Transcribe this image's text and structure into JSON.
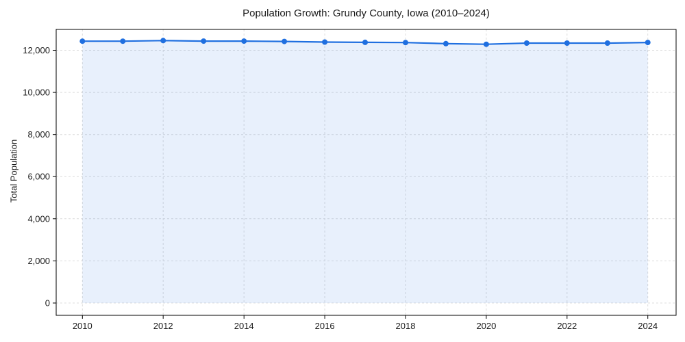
{
  "chart_data": {
    "type": "line",
    "title": "Population Growth: Grundy County, Iowa (2010–2024)",
    "xlabel": "",
    "ylabel": "Total Population",
    "x": [
      2010,
      2011,
      2012,
      2013,
      2014,
      2015,
      2016,
      2017,
      2018,
      2019,
      2020,
      2021,
      2022,
      2023,
      2024
    ],
    "series": [
      {
        "name": "Total Population",
        "values": [
          12430,
          12430,
          12460,
          12435,
          12435,
          12420,
          12390,
          12375,
          12365,
          12315,
          12285,
          12340,
          12340,
          12340,
          12370
        ]
      }
    ],
    "x_ticks": [
      2010,
      2012,
      2014,
      2016,
      2018,
      2020,
      2022,
      2024
    ],
    "x_tick_labels": [
      "2010",
      "2012",
      "2014",
      "2016",
      "2018",
      "2020",
      "2022",
      "2024"
    ],
    "y_ticks": [
      0,
      2000,
      4000,
      6000,
      8000,
      10000,
      12000
    ],
    "y_tick_labels": [
      "0",
      "2,000",
      "4,000",
      "6,000",
      "8,000",
      "10,000",
      "12,000"
    ],
    "xlim": [
      2009.35,
      2024.7
    ],
    "ylim": [
      -585,
      12990
    ],
    "grid": true,
    "grid_style": "dashed",
    "legend": false,
    "area_fill": true,
    "marker": "circle",
    "colors": {
      "line": "#1f6fe0",
      "area_fill": "#e8f0fb",
      "grid": "#dcdcdc",
      "spine": "#000000",
      "text": "#1a1a1a"
    }
  }
}
